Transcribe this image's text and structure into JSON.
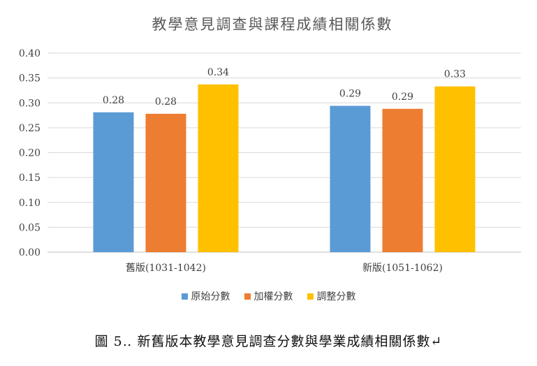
{
  "chart_data": {
    "type": "bar",
    "title": "教學意見調查與課程成績相關係數",
    "categories": [
      "舊版(1031-1042)",
      "新版(1051-1062)"
    ],
    "series": [
      {
        "name": "原始分數",
        "values": [
          0.28,
          0.29
        ],
        "color": "#5B9BD5"
      },
      {
        "name": "加權分數",
        "values": [
          0.28,
          0.29
        ],
        "color": "#ED7D31"
      },
      {
        "name": "調整分數",
        "values": [
          0.34,
          0.33
        ],
        "color": "#FFC000"
      }
    ],
    "plotted_values": [
      [
        0.281,
        0.294
      ],
      [
        0.278,
        0.288
      ],
      [
        0.337,
        0.333
      ]
    ],
    "ylim": [
      0,
      0.4
    ],
    "yticks": [
      "0.00",
      "0.05",
      "0.10",
      "0.15",
      "0.20",
      "0.25",
      "0.30",
      "0.35",
      "0.40"
    ],
    "grid": true,
    "legend": "bottom"
  },
  "caption": "圖 5‥ 新舊版本教學意見調查分數與學業成績相關係數↵"
}
